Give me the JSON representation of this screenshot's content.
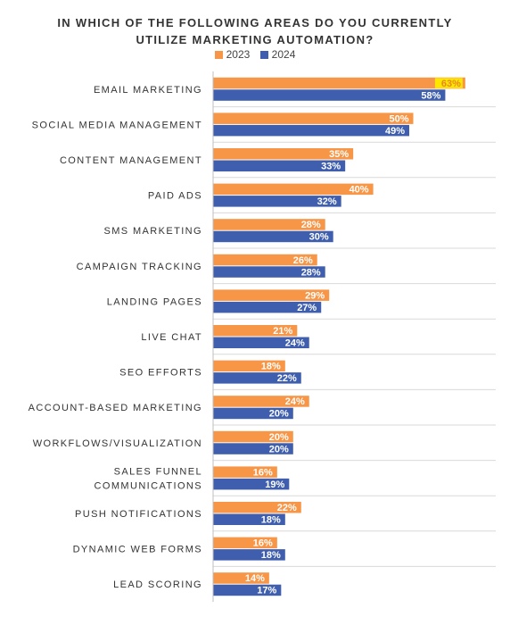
{
  "chart_data": {
    "type": "bar",
    "orientation": "horizontal",
    "title_line1": "IN WHICH OF THE FOLLOWING AREAS DO YOU CURRENTLY",
    "title_line2": "UTILIZE MARKETING AUTOMATION?",
    "categories": [
      [
        "EMAIL MARKETING"
      ],
      [
        "SOCIAL MEDIA MANAGEMENT"
      ],
      [
        "CONTENT MANAGEMENT"
      ],
      [
        "PAID ADS"
      ],
      [
        "SMS MARKETING"
      ],
      [
        "CAMPAIGN TRACKING"
      ],
      [
        "LANDING PAGES"
      ],
      [
        "LIVE CHAT"
      ],
      [
        "SEO EFFORTS"
      ],
      [
        "ACCOUNT-BASED MARKETING"
      ],
      [
        "WORKFLOWS/VISUALIZATION"
      ],
      [
        "SALES FUNNEL",
        "COMMUNICATIONS"
      ],
      [
        "PUSH NOTIFICATIONS"
      ],
      [
        "DYNAMIC WEB FORMS"
      ],
      [
        "LEAD SCORING"
      ]
    ],
    "series": [
      {
        "name": "2023",
        "color": "#F79646",
        "values": [
          63,
          50,
          35,
          40,
          28,
          26,
          29,
          21,
          18,
          24,
          20,
          16,
          22,
          16,
          14
        ]
      },
      {
        "name": "2024",
        "color": "#3F5FAE",
        "values": [
          58,
          49,
          33,
          32,
          30,
          28,
          27,
          24,
          22,
          20,
          20,
          19,
          18,
          18,
          17
        ]
      }
    ],
    "value_suffix": "%",
    "highlight": {
      "series": 0,
      "index": 0,
      "label_color": "#FFE600"
    },
    "xlim": [
      0,
      70
    ],
    "legend_position": "top-center",
    "grid": false
  }
}
